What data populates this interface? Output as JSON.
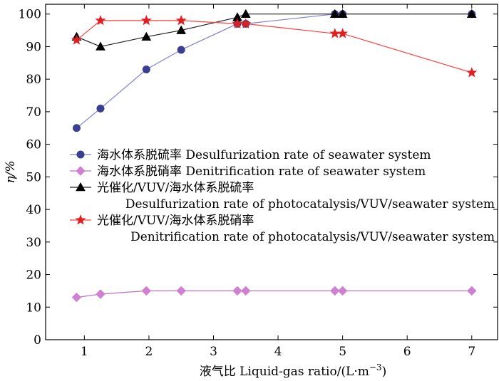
{
  "chart_data": {
    "type": "line",
    "title": "",
    "xlabel": "液气比 Liquid-gas ratio/(L·m",
    "xlabel_sup": "−3",
    "xlabel_close": ")",
    "ylabel": "η/%",
    "xlim": [
      0.4,
      7.4
    ],
    "ylim": [
      0,
      103
    ],
    "xticks": [
      1,
      2,
      3,
      4,
      5,
      6,
      7
    ],
    "yticks": [
      0,
      10,
      20,
      30,
      40,
      50,
      60,
      70,
      80,
      90,
      100
    ],
    "legend_position": "center",
    "series": [
      {
        "name": "海水体系脱硫率 Desulfurization rate of seawater system",
        "legend_lines": [
          "海水体系脱硫率 Desulfurization rate of seawater system"
        ],
        "color": "#8080d0",
        "marker_color": "#3a3f8f",
        "marker": "circle",
        "x": [
          0.88,
          1.25,
          1.96,
          2.5,
          3.37,
          3.5,
          4.88,
          5.0,
          7.0
        ],
        "y": [
          65,
          71,
          83,
          89,
          97,
          97,
          100,
          100,
          100
        ]
      },
      {
        "name": "海水体系脱硝率 Denitrification rate of seawater system",
        "legend_lines": [
          "海水体系脱硝率 Denitrification rate of seawater system"
        ],
        "color": "#c070c0",
        "marker_color": "#d080d0",
        "marker": "diamond",
        "x": [
          0.88,
          1.25,
          1.96,
          2.5,
          3.37,
          3.5,
          4.88,
          5.0,
          7.0
        ],
        "y": [
          13,
          14,
          15,
          15,
          15,
          15,
          15,
          15,
          15
        ]
      },
      {
        "name": "光催化/VUV/海水体系脱硫率 Desulfurization rate of photocatalysis/VUV/seawater system",
        "legend_lines": [
          "光催化/VUV/海水体系脱硫率",
          "Desulfurization rate of photocatalysis/VUV/seawater system"
        ],
        "color": "#202020",
        "marker_color": "#000000",
        "marker": "triangle",
        "x": [
          0.88,
          1.25,
          1.96,
          2.5,
          3.37,
          3.5,
          4.88,
          5.0,
          7.0
        ],
        "y": [
          93,
          90,
          93,
          95,
          99,
          100,
          100,
          100,
          100
        ]
      },
      {
        "name": "光催化/VUV/海水体系脱硝率 Denitrification rate of photocatalysis/VUV/seawater system",
        "legend_lines": [
          "光催化/VUV/海水体系脱硝率",
          "Denitrification rate of photocatalysis/VUV/seawater system"
        ],
        "color": "#ff4040",
        "marker_color": "#e02020",
        "marker": "star",
        "x": [
          0.88,
          1.25,
          1.96,
          2.5,
          3.37,
          3.5,
          4.88,
          5.0,
          7.0
        ],
        "y": [
          92,
          98,
          98,
          98,
          97,
          97,
          94,
          94,
          82
        ]
      }
    ]
  }
}
